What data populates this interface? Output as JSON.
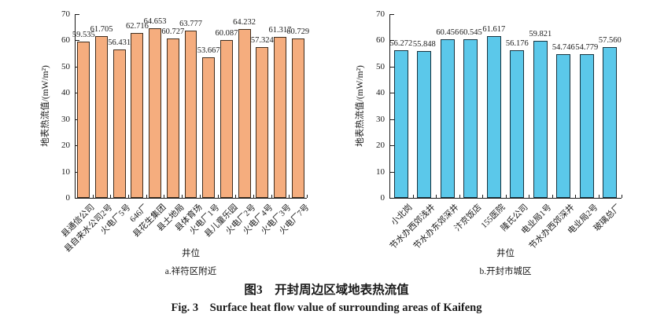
{
  "figure": {
    "caption_zh": "图3　开封周边区域地表热流值",
    "caption_en": "Fig. 3　Surface heat flow value of surrounding areas of Kaifeng"
  },
  "chart_data": [
    {
      "type": "bar",
      "subtitle": "a.祥符区附近",
      "xlabel": "井位",
      "ylabel": "地表热流值/(mW/m²)",
      "ylim": [
        0,
        70
      ],
      "yticks": [
        0,
        10,
        20,
        30,
        40,
        50,
        60,
        70
      ],
      "grid": false,
      "bar_fill": "#F5AD7E",
      "bar_border": "#3F2D1E",
      "categories": [
        "县通信公司",
        "县自来水公司2号",
        "火电厂5号",
        "646厂",
        "县花生集团",
        "县土地局",
        "县体育场",
        "火电厂1号",
        "县儿童乐园",
        "火电厂2号",
        "火电厂4号",
        "火电厂3号",
        "火电厂7号"
      ],
      "values": [
        59.535,
        61.705,
        56.431,
        62.716,
        64.653,
        60.727,
        63.777,
        53.667,
        60.087,
        64.232,
        57.324,
        61.317,
        60.729
      ],
      "value_labels": [
        "59.535",
        "61.705",
        "56.431",
        "62.716",
        "64.653",
        "60.727",
        "63.777",
        "53.667",
        "60.087",
        "64.232",
        "57.324",
        "61.317",
        "60.729"
      ]
    },
    {
      "type": "bar",
      "subtitle": "b.开封市城区",
      "xlabel": "井位",
      "ylabel": "地表热流值/(mW/m²)",
      "ylim": [
        0,
        70
      ],
      "yticks": [
        0,
        10,
        20,
        30,
        40,
        50,
        60,
        70
      ],
      "grid": false,
      "bar_fill": "#5BC8EA",
      "bar_border": "#17333F",
      "categories": [
        "小北岗",
        "节水办西郊浅井",
        "节水办东郊深井",
        "汴京饭店",
        "155医院",
        "隆氏公司",
        "电业局1号",
        "节水办西郊深井",
        "电业局2号",
        "玻璃总厂"
      ],
      "values": [
        56.272,
        55.848,
        60.456,
        60.545,
        61.617,
        56.176,
        59.821,
        54.746,
        54.779,
        57.56
      ],
      "value_labels": [
        "56.272",
        "55.848",
        "60.456",
        "60.545",
        "61.617",
        "56.176",
        "59.821",
        "54.746",
        "54.779",
        "57.560"
      ]
    }
  ]
}
